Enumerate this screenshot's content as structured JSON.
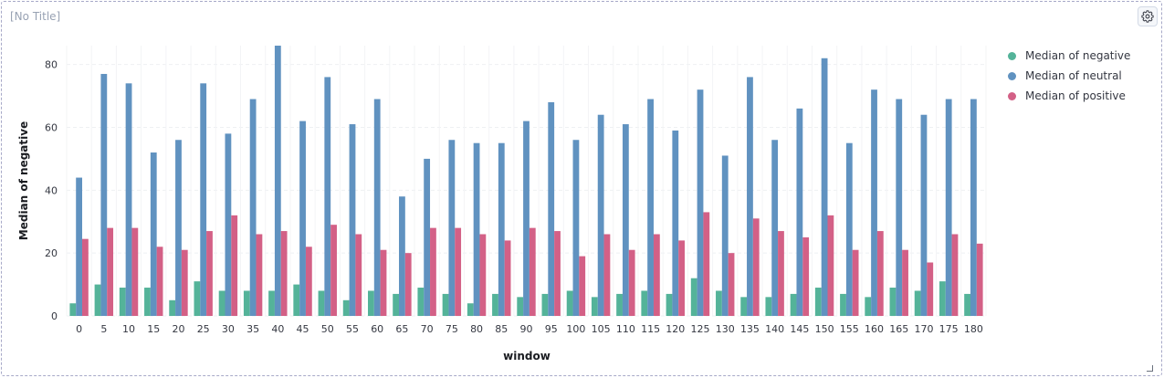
{
  "panel": {
    "title": "[No Title]",
    "settings_icon": "gear-icon",
    "resize_icon": "resize-handle-icon"
  },
  "chart_data": {
    "type": "bar",
    "xlabel": "window",
    "ylabel": "Median of negative",
    "ylim": [
      0,
      86
    ],
    "yticks": [
      0,
      20,
      40,
      60,
      80
    ],
    "grid": true,
    "legend_position": "top-right",
    "categories": [
      "0",
      "5",
      "10",
      "15",
      "20",
      "25",
      "30",
      "35",
      "40",
      "45",
      "50",
      "55",
      "60",
      "65",
      "70",
      "75",
      "80",
      "85",
      "90",
      "95",
      "100",
      "105",
      "110",
      "115",
      "120",
      "125",
      "130",
      "135",
      "140",
      "145",
      "150",
      "155",
      "160",
      "165",
      "170",
      "175",
      "180"
    ],
    "series": [
      {
        "name": "Median of negative",
        "color": "#54b399",
        "values": [
          4,
          10,
          9,
          9,
          5,
          11,
          8,
          8,
          8,
          10,
          8,
          5,
          8,
          7,
          9,
          7,
          4,
          7,
          6,
          7,
          8,
          6,
          7,
          8,
          7,
          12,
          8,
          6,
          6,
          7,
          9,
          7,
          6,
          9,
          8,
          11,
          7
        ]
      },
      {
        "name": "Median of neutral",
        "color": "#6092c0",
        "values": [
          44,
          77,
          74,
          52,
          56,
          74,
          58,
          69,
          86,
          62,
          76,
          61,
          69,
          38,
          50,
          56,
          55,
          55,
          62,
          68,
          56,
          64,
          61,
          69,
          59,
          72,
          51,
          76,
          56,
          66,
          82,
          55,
          72,
          69,
          64,
          69,
          69
        ]
      },
      {
        "name": "Median of positive",
        "color": "#d36086",
        "values": [
          24.5,
          28,
          28,
          22,
          21,
          27,
          32,
          26,
          27,
          22,
          29,
          26,
          21,
          20,
          28,
          28,
          26,
          24,
          28,
          27,
          19,
          26,
          21,
          26,
          24,
          33,
          20,
          31,
          27,
          25,
          32,
          21,
          27,
          21,
          17,
          26,
          23
        ]
      }
    ]
  }
}
